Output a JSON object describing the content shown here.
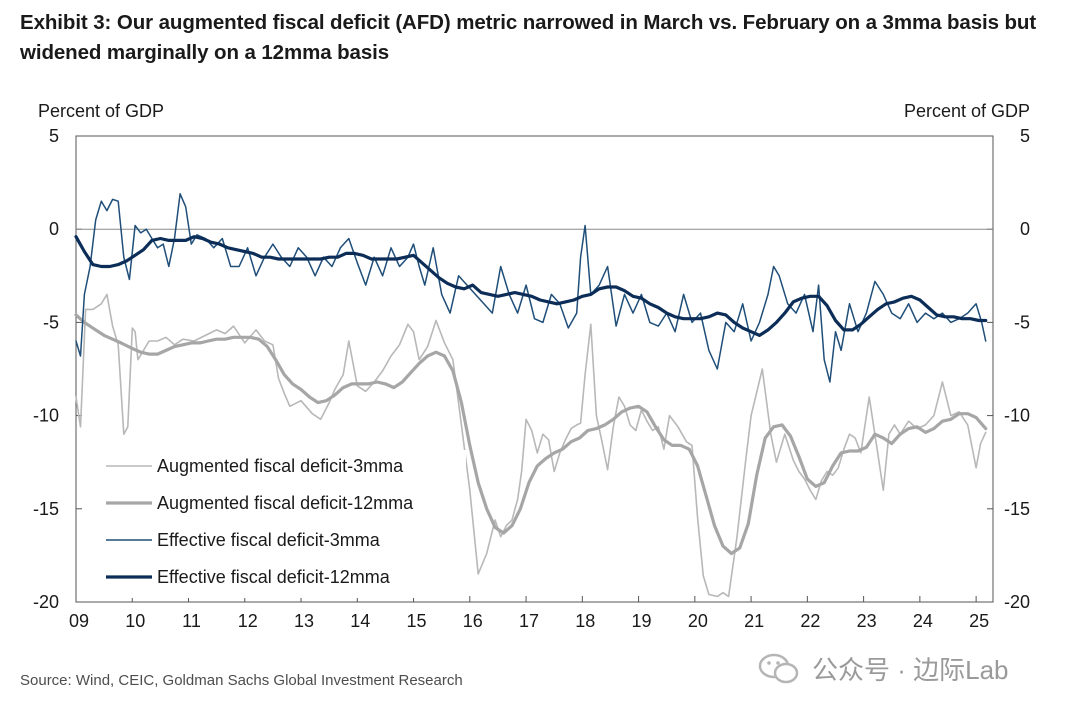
{
  "title": "Exhibit 3: Our augmented fiscal deficit (AFD) metric narrowed in March vs. February on a 3mma basis but widened marginally on a 12mma basis",
  "source": "Source: Wind, CEIC, Goldman Sachs Global Investment Research",
  "watermark": "公众号 · 边际Lab",
  "colors": {
    "light_gray": "#b8b8b8",
    "gray": "#a6a6a6",
    "navy": "#1f4e79",
    "dark_navy": "#0c2d57"
  },
  "chart_data": {
    "type": "line",
    "ylabel_left": "Percent of GDP",
    "ylabel_right": "Percent of GDP",
    "ylim": [
      -20,
      5
    ],
    "yticks": [
      5,
      0,
      -5,
      -10,
      -15,
      -20
    ],
    "xlim": [
      2009,
      2025.3
    ],
    "xticks": [
      "09",
      "10",
      "11",
      "12",
      "13",
      "14",
      "15",
      "16",
      "17",
      "18",
      "19",
      "20",
      "21",
      "22",
      "23",
      "24",
      "25"
    ],
    "grid": false,
    "legend_position": "lower-left",
    "series": [
      {
        "name": "Augmented fiscal deficit-3mma",
        "style": "thin-light-gray",
        "x": [
          2009.0,
          2009.08,
          2009.17,
          2009.3,
          2009.45,
          2009.55,
          2009.65,
          2009.75,
          2009.85,
          2009.92,
          2010.0,
          2010.05,
          2010.1,
          2010.2,
          2010.3,
          2010.45,
          2010.6,
          2010.75,
          2010.9,
          2011.1,
          2011.3,
          2011.5,
          2011.65,
          2011.8,
          2012.0,
          2012.2,
          2012.35,
          2012.5,
          2012.6,
          2012.7,
          2012.8,
          2013.0,
          2013.2,
          2013.35,
          2013.5,
          2013.6,
          2013.75,
          2013.85,
          2014.0,
          2014.15,
          2014.3,
          2014.45,
          2014.6,
          2014.75,
          2014.9,
          2015.0,
          2015.1,
          2015.25,
          2015.4,
          2015.55,
          2015.7,
          2015.85,
          2016.0,
          2016.15,
          2016.3,
          2016.45,
          2016.55,
          2016.65,
          2016.75,
          2016.85,
          2016.92,
          2017.0,
          2017.1,
          2017.2,
          2017.3,
          2017.4,
          2017.5,
          2017.6,
          2017.7,
          2017.8,
          2017.9,
          2017.97,
          2018.05,
          2018.15,
          2018.25,
          2018.35,
          2018.45,
          2018.55,
          2018.65,
          2018.75,
          2018.85,
          2018.95,
          2019.05,
          2019.15,
          2019.25,
          2019.35,
          2019.45,
          2019.55,
          2019.7,
          2019.85,
          2019.95,
          2020.05,
          2020.15,
          2020.25,
          2020.4,
          2020.5,
          2020.6,
          2020.75,
          2020.9,
          2021.0,
          2021.2,
          2021.35,
          2021.45,
          2021.6,
          2021.75,
          2021.85,
          2021.95,
          2022.05,
          2022.15,
          2022.25,
          2022.35,
          2022.45,
          2022.55,
          2022.65,
          2022.75,
          2022.85,
          2022.95,
          2023.1,
          2023.25,
          2023.35,
          2023.45,
          2023.55,
          2023.65,
          2023.8,
          2023.95,
          2024.1,
          2024.25,
          2024.4,
          2024.55,
          2024.7,
          2024.85,
          2025.0,
          2025.08,
          2025.17
        ],
        "y": [
          -9.0,
          -10.6,
          -4.3,
          -4.3,
          -4.0,
          -3.5,
          -5.2,
          -6.2,
          -11.0,
          -10.6,
          -5.3,
          -5.5,
          -7.0,
          -6.5,
          -6.0,
          -6.0,
          -5.8,
          -6.2,
          -5.9,
          -6.0,
          -5.7,
          -5.4,
          -5.6,
          -5.2,
          -6.1,
          -5.4,
          -6.0,
          -6.2,
          -8.0,
          -8.8,
          -9.5,
          -9.2,
          -9.9,
          -10.2,
          -9.3,
          -8.6,
          -7.8,
          -6.0,
          -8.4,
          -8.7,
          -8.2,
          -7.6,
          -6.8,
          -6.2,
          -5.1,
          -5.5,
          -7.0,
          -6.3,
          -4.9,
          -6.1,
          -7.0,
          -10.5,
          -14.0,
          -18.5,
          -17.4,
          -15.6,
          -16.5,
          -15.9,
          -15.6,
          -14.5,
          -13.0,
          -10.2,
          -10.8,
          -12.0,
          -11.0,
          -11.3,
          -13.0,
          -12.0,
          -11.3,
          -10.7,
          -10.5,
          -10.4,
          -7.8,
          -5.1,
          -10.0,
          -11.4,
          -12.9,
          -10.6,
          -9.0,
          -9.5,
          -10.5,
          -10.8,
          -9.7,
          -10.3,
          -10.8,
          -10.6,
          -11.8,
          -10.0,
          -10.6,
          -11.4,
          -11.6,
          -15.5,
          -18.6,
          -19.6,
          -19.7,
          -19.5,
          -19.7,
          -16.5,
          -12.5,
          -10.0,
          -7.5,
          -11.0,
          -12.5,
          -11.0,
          -12.4,
          -13.0,
          -13.4,
          -14.0,
          -14.5,
          -13.5,
          -13.0,
          -13.2,
          -12.8,
          -11.8,
          -11.0,
          -11.2,
          -12.0,
          -9.0,
          -12.0,
          -14.0,
          -11.0,
          -10.5,
          -11.0,
          -10.3,
          -10.7,
          -10.5,
          -10.0,
          -8.2,
          -10.0,
          -9.8,
          -10.5,
          -12.8,
          -11.5,
          -10.9
        ]
      },
      {
        "name": "Augmented fiscal deficit-12mma",
        "style": "thick-gray",
        "x": [
          2009.0,
          2009.15,
          2009.35,
          2009.5,
          2009.65,
          2009.8,
          2010.0,
          2010.15,
          2010.3,
          2010.45,
          2010.6,
          2010.75,
          2010.9,
          2011.05,
          2011.2,
          2011.35,
          2011.5,
          2011.65,
          2011.8,
          2011.95,
          2012.1,
          2012.25,
          2012.4,
          2012.55,
          2012.7,
          2012.85,
          2013.0,
          2013.15,
          2013.3,
          2013.45,
          2013.6,
          2013.75,
          2013.9,
          2014.05,
          2014.2,
          2014.35,
          2014.5,
          2014.65,
          2014.8,
          2014.95,
          2015.1,
          2015.25,
          2015.4,
          2015.55,
          2015.7,
          2015.85,
          2016.0,
          2016.15,
          2016.3,
          2016.45,
          2016.6,
          2016.75,
          2016.9,
          2017.05,
          2017.2,
          2017.35,
          2017.5,
          2017.65,
          2017.8,
          2017.95,
          2018.1,
          2018.25,
          2018.4,
          2018.55,
          2018.7,
          2018.85,
          2019.0,
          2019.15,
          2019.3,
          2019.45,
          2019.6,
          2019.75,
          2019.9,
          2020.05,
          2020.2,
          2020.35,
          2020.5,
          2020.65,
          2020.8,
          2020.95,
          2021.1,
          2021.25,
          2021.4,
          2021.55,
          2021.7,
          2021.85,
          2022.0,
          2022.15,
          2022.3,
          2022.45,
          2022.6,
          2022.75,
          2022.9,
          2023.05,
          2023.2,
          2023.35,
          2023.5,
          2023.65,
          2023.8,
          2023.95,
          2024.1,
          2024.25,
          2024.4,
          2024.55,
          2024.7,
          2024.85,
          2025.0,
          2025.17
        ],
        "y": [
          -4.6,
          -5.0,
          -5.4,
          -5.7,
          -5.9,
          -6.1,
          -6.4,
          -6.6,
          -6.7,
          -6.7,
          -6.5,
          -6.3,
          -6.2,
          -6.1,
          -6.1,
          -6.0,
          -5.9,
          -5.9,
          -5.8,
          -5.8,
          -5.8,
          -5.9,
          -6.3,
          -7.0,
          -7.8,
          -8.3,
          -8.6,
          -9.0,
          -9.3,
          -9.2,
          -8.9,
          -8.5,
          -8.3,
          -8.3,
          -8.3,
          -8.2,
          -8.3,
          -8.5,
          -8.2,
          -7.7,
          -7.2,
          -6.8,
          -6.6,
          -6.8,
          -7.6,
          -9.3,
          -11.6,
          -13.6,
          -15.0,
          -16.0,
          -16.3,
          -15.9,
          -15.0,
          -13.6,
          -12.7,
          -12.3,
          -12.0,
          -11.8,
          -11.4,
          -11.2,
          -10.8,
          -10.7,
          -10.5,
          -10.2,
          -9.8,
          -9.6,
          -9.5,
          -9.8,
          -10.6,
          -11.3,
          -11.6,
          -11.6,
          -11.8,
          -12.7,
          -14.3,
          -15.9,
          -17.0,
          -17.4,
          -17.1,
          -15.8,
          -13.2,
          -11.2,
          -10.6,
          -10.5,
          -11.1,
          -12.2,
          -13.4,
          -13.8,
          -13.6,
          -12.7,
          -12.0,
          -11.9,
          -11.9,
          -11.7,
          -11.0,
          -11.2,
          -11.5,
          -11.0,
          -10.7,
          -10.6,
          -10.9,
          -10.7,
          -10.3,
          -10.2,
          -9.9,
          -9.9,
          -10.1,
          -10.7
        ]
      },
      {
        "name": "Effective fiscal deficit-3mma",
        "style": "thin-navy",
        "x": [
          2009.0,
          2009.08,
          2009.15,
          2009.25,
          2009.35,
          2009.45,
          2009.55,
          2009.65,
          2009.75,
          2009.85,
          2009.95,
          2010.05,
          2010.15,
          2010.25,
          2010.35,
          2010.45,
          2010.55,
          2010.65,
          2010.75,
          2010.85,
          2010.95,
          2011.05,
          2011.15,
          2011.3,
          2011.45,
          2011.6,
          2011.75,
          2011.9,
          2012.05,
          2012.2,
          2012.35,
          2012.5,
          2012.65,
          2012.8,
          2012.95,
          2013.1,
          2013.25,
          2013.4,
          2013.55,
          2013.7,
          2013.85,
          2014.0,
          2014.15,
          2014.3,
          2014.45,
          2014.6,
          2014.75,
          2014.9,
          2015.0,
          2015.1,
          2015.2,
          2015.35,
          2015.5,
          2015.65,
          2015.8,
          2015.95,
          2016.1,
          2016.25,
          2016.4,
          2016.55,
          2016.7,
          2016.85,
          2017.0,
          2017.15,
          2017.3,
          2017.45,
          2017.6,
          2017.75,
          2017.9,
          2017.97,
          2018.05,
          2018.15,
          2018.3,
          2018.45,
          2018.6,
          2018.75,
          2018.9,
          2019.05,
          2019.2,
          2019.35,
          2019.5,
          2019.65,
          2019.8,
          2019.95,
          2020.1,
          2020.25,
          2020.4,
          2020.55,
          2020.7,
          2020.85,
          2021.0,
          2021.15,
          2021.3,
          2021.4,
          2021.5,
          2021.65,
          2021.8,
          2021.95,
          2022.1,
          2022.2,
          2022.3,
          2022.4,
          2022.5,
          2022.6,
          2022.75,
          2022.9,
          2023.05,
          2023.2,
          2023.35,
          2023.5,
          2023.65,
          2023.8,
          2023.95,
          2024.1,
          2024.25,
          2024.4,
          2024.55,
          2024.7,
          2024.85,
          2025.0,
          2025.1,
          2025.17
        ],
        "y": [
          -6.0,
          -6.8,
          -3.5,
          -2.0,
          0.5,
          1.5,
          1.0,
          1.6,
          1.5,
          -1.5,
          -2.7,
          0.2,
          -0.2,
          0.0,
          -0.5,
          -1.0,
          -0.8,
          -2.0,
          -0.5,
          1.9,
          1.2,
          -0.8,
          -0.3,
          -0.5,
          -1.0,
          -0.5,
          -2.0,
          -2.0,
          -1.0,
          -2.5,
          -1.5,
          -0.8,
          -1.5,
          -2.0,
          -1.0,
          -1.5,
          -2.5,
          -1.5,
          -2.0,
          -1.0,
          -0.5,
          -1.8,
          -3.0,
          -1.5,
          -2.5,
          -1.0,
          -2.0,
          -1.5,
          -0.8,
          -2.0,
          -3.0,
          -1.0,
          -3.5,
          -4.5,
          -2.5,
          -3.0,
          -3.5,
          -4.0,
          -4.5,
          -2.0,
          -3.5,
          -4.5,
          -3.0,
          -4.8,
          -5.0,
          -3.5,
          -4.0,
          -5.3,
          -4.5,
          -1.5,
          0.2,
          -3.5,
          -3.0,
          -2.0,
          -5.2,
          -3.5,
          -4.5,
          -3.5,
          -5.0,
          -5.2,
          -4.5,
          -5.5,
          -3.5,
          -5.0,
          -4.5,
          -6.5,
          -7.5,
          -5.0,
          -5.5,
          -4.0,
          -6.0,
          -5.0,
          -3.5,
          -2.0,
          -2.5,
          -4.0,
          -4.5,
          -3.5,
          -5.5,
          -3.0,
          -7.0,
          -8.2,
          -5.5,
          -6.5,
          -4.0,
          -5.5,
          -4.5,
          -2.8,
          -3.5,
          -4.5,
          -4.8,
          -4.0,
          -5.0,
          -4.5,
          -4.8,
          -4.5,
          -5.0,
          -4.8,
          -4.5,
          -4.0,
          -5.0,
          -6.0
        ]
      },
      {
        "name": "Effective fiscal deficit-12mma",
        "style": "thick-dark-navy",
        "x": [
          2009.0,
          2009.15,
          2009.3,
          2009.45,
          2009.6,
          2009.75,
          2009.9,
          2010.05,
          2010.2,
          2010.35,
          2010.5,
          2010.65,
          2010.8,
          2010.95,
          2011.1,
          2011.25,
          2011.4,
          2011.55,
          2011.7,
          2011.85,
          2012.0,
          2012.15,
          2012.3,
          2012.45,
          2012.6,
          2012.75,
          2012.9,
          2013.05,
          2013.2,
          2013.35,
          2013.5,
          2013.65,
          2013.8,
          2013.95,
          2014.1,
          2014.25,
          2014.4,
          2014.55,
          2014.7,
          2014.85,
          2015.0,
          2015.15,
          2015.3,
          2015.45,
          2015.6,
          2015.75,
          2015.9,
          2016.05,
          2016.2,
          2016.35,
          2016.5,
          2016.65,
          2016.8,
          2016.95,
          2017.1,
          2017.25,
          2017.4,
          2017.55,
          2017.7,
          2017.85,
          2018.0,
          2018.15,
          2018.3,
          2018.45,
          2018.6,
          2018.75,
          2018.9,
          2019.05,
          2019.2,
          2019.35,
          2019.5,
          2019.65,
          2019.8,
          2019.95,
          2020.1,
          2020.25,
          2020.4,
          2020.55,
          2020.7,
          2020.85,
          2021.0,
          2021.15,
          2021.3,
          2021.45,
          2021.6,
          2021.75,
          2021.9,
          2022.05,
          2022.2,
          2022.35,
          2022.5,
          2022.65,
          2022.8,
          2022.95,
          2023.1,
          2023.25,
          2023.4,
          2023.55,
          2023.7,
          2023.85,
          2024.0,
          2024.15,
          2024.3,
          2024.45,
          2024.6,
          2024.75,
          2024.9,
          2025.05,
          2025.17
        ],
        "y": [
          -0.4,
          -1.2,
          -1.9,
          -2.0,
          -2.0,
          -1.9,
          -1.7,
          -1.4,
          -1.1,
          -0.6,
          -0.5,
          -0.6,
          -0.6,
          -0.6,
          -0.4,
          -0.5,
          -0.7,
          -0.8,
          -1.0,
          -1.1,
          -1.2,
          -1.3,
          -1.5,
          -1.5,
          -1.6,
          -1.6,
          -1.6,
          -1.6,
          -1.6,
          -1.6,
          -1.5,
          -1.5,
          -1.3,
          -1.3,
          -1.4,
          -1.6,
          -1.6,
          -1.6,
          -1.6,
          -1.5,
          -1.4,
          -1.8,
          -2.2,
          -2.6,
          -2.9,
          -3.1,
          -3.2,
          -3.0,
          -3.4,
          -3.5,
          -3.6,
          -3.5,
          -3.4,
          -3.5,
          -3.6,
          -3.8,
          -3.9,
          -4.0,
          -3.9,
          -3.8,
          -3.6,
          -3.5,
          -3.2,
          -3.1,
          -3.1,
          -3.3,
          -3.6,
          -3.7,
          -4.0,
          -4.2,
          -4.5,
          -4.7,
          -4.8,
          -4.8,
          -4.8,
          -4.7,
          -4.5,
          -4.6,
          -5.0,
          -5.3,
          -5.5,
          -5.7,
          -5.4,
          -5.0,
          -4.5,
          -3.9,
          -3.7,
          -3.6,
          -3.6,
          -4.1,
          -4.9,
          -5.4,
          -5.4,
          -5.1,
          -4.7,
          -4.3,
          -4.0,
          -3.9,
          -3.7,
          -3.6,
          -3.8,
          -4.2,
          -4.6,
          -4.7,
          -4.7,
          -4.8,
          -4.8,
          -4.9,
          -4.9
        ]
      }
    ]
  }
}
